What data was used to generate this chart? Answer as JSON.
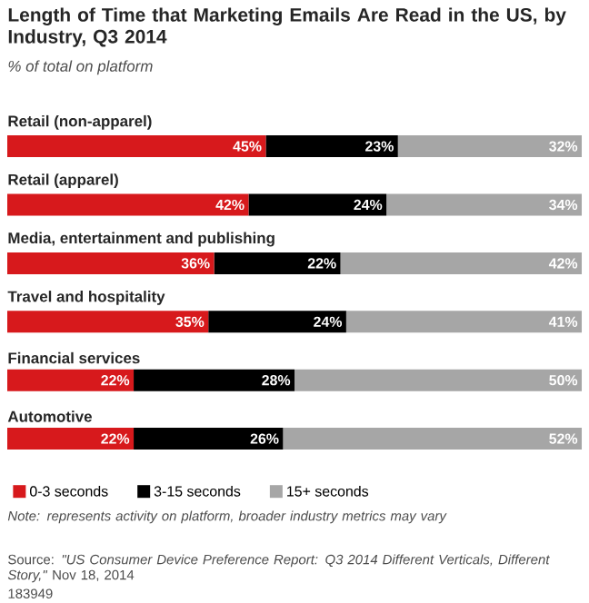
{
  "chart_data": {
    "type": "bar",
    "orientation": "horizontal",
    "stacked": true,
    "title": "Length of Time that Marketing Emails Are Read in the US, by Industry, Q3 2014",
    "subtitle": "% of total on platform",
    "categories": [
      "Retail (non-apparel)",
      "Retail (apparel)",
      "Media, entertainment and publishing",
      "Travel and hospitality",
      "Financial services",
      "Automotive"
    ],
    "series": [
      {
        "name": "0-3 seconds",
        "color": "#d7191c",
        "values": [
          45,
          42,
          36,
          35,
          22,
          22
        ],
        "value_labels": [
          "45%",
          "42%",
          "36%",
          "35%",
          "22%",
          "22%"
        ]
      },
      {
        "name": "3-15 seconds",
        "color": "#000000",
        "values": [
          23,
          24,
          22,
          24,
          28,
          26
        ],
        "value_labels": [
          "23%",
          "24%",
          "22%",
          "24%",
          "28%",
          "26%"
        ]
      },
      {
        "name": "15+ seconds",
        "color": "#a6a6a6",
        "values": [
          32,
          34,
          42,
          41,
          50,
          52
        ],
        "value_labels": [
          "32%",
          "34%",
          "42%",
          "41%",
          "50%",
          "52%"
        ]
      }
    ],
    "legend": "bottom",
    "annotations": [
      "Note: represents activity on platform, broader industry metrics may vary",
      "Source: *\"US Consumer Device Preference Report: Q3 2014 Different Verticals, Different Story,\"* Nov 18, 2014",
      "183949"
    ]
  }
}
